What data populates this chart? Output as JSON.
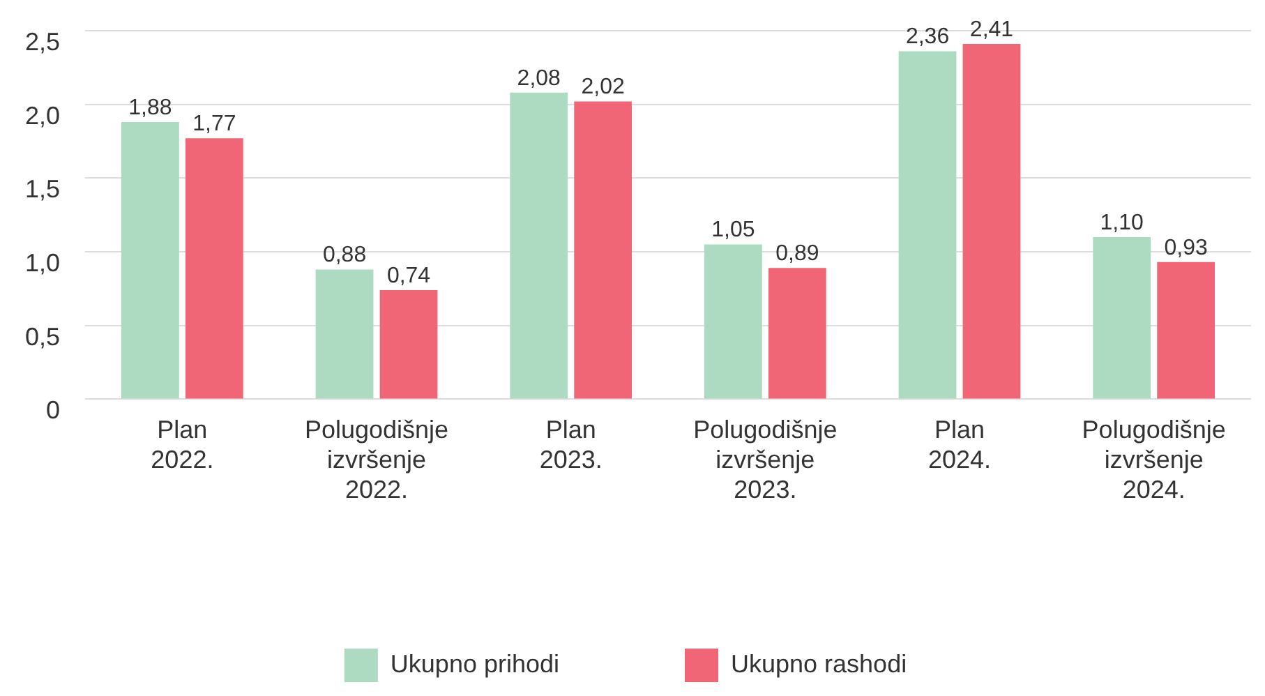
{
  "chart_data": {
    "type": "bar",
    "categories": [
      "Plan 2022.",
      "Polugodišnje izvršenje 2022.",
      "Plan 2023.",
      "Polugodišnje izvršenje 2023.",
      "Plan 2024.",
      "Polugodišnje izvršenje 2024."
    ],
    "series": [
      {
        "name": "Ukupno prihodi",
        "color": "#addbc2",
        "values": [
          1.88,
          0.88,
          2.08,
          1.05,
          2.36,
          1.1
        ],
        "value_labels": [
          "1,88",
          "0,88",
          "2,08",
          "1,05",
          "2,36",
          "1,10"
        ]
      },
      {
        "name": "Ukupno rashodi",
        "color": "#f06677",
        "values": [
          1.77,
          0.74,
          2.02,
          0.89,
          2.41,
          0.93
        ],
        "value_labels": [
          "1,77",
          "0,74",
          "2,02",
          "0,89",
          "2,41",
          "0,93"
        ]
      }
    ],
    "ylim": [
      0,
      2.5
    ],
    "yticks": [
      {
        "value": 0,
        "label": "0"
      },
      {
        "value": 0.5,
        "label": "0,5"
      },
      {
        "value": 1,
        "label": "1,0"
      },
      {
        "value": 1.5,
        "label": "1,5"
      },
      {
        "value": 2,
        "label": "2,0"
      },
      {
        "value": 2.5,
        "label": "2,5"
      }
    ],
    "grid": "y",
    "legend": "bottom"
  }
}
